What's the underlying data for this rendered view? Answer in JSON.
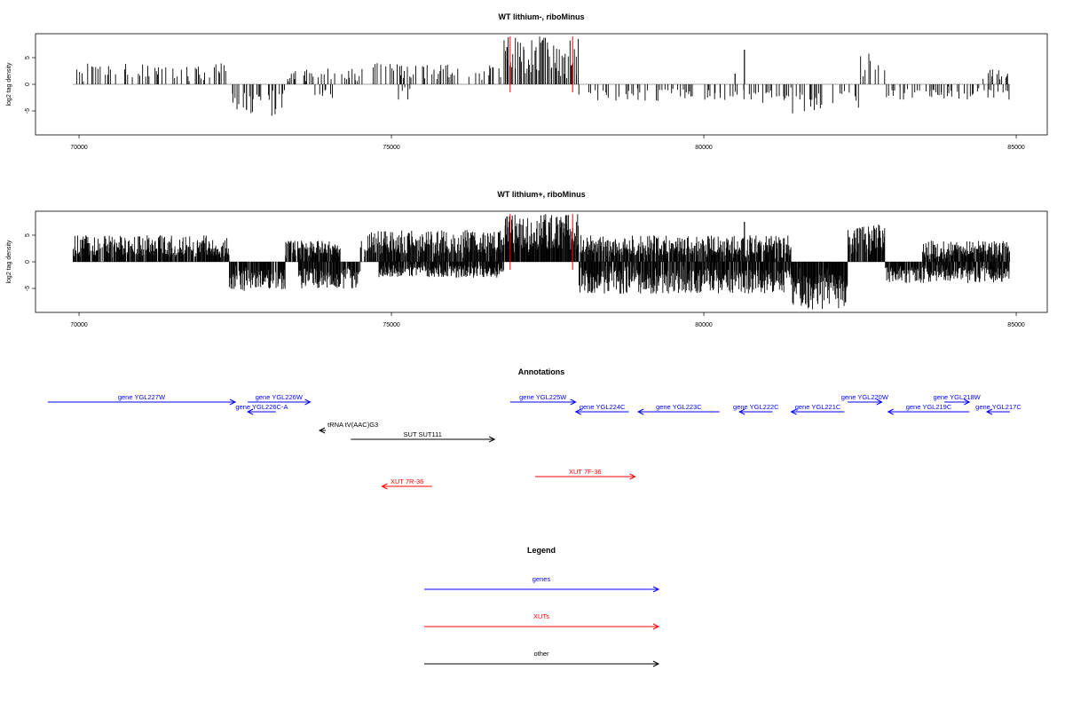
{
  "chart_data": [
    {
      "type": "bar",
      "title": "WT lithium-, riboMinus",
      "ylabel": "log2 tag density",
      "xlim": [
        69900,
        84900
      ],
      "ylim": [
        -9.5,
        9.5
      ],
      "x_ticks": [
        "70000",
        "75000",
        "80000",
        "85000"
      ],
      "y_ticks": [
        "-5",
        "0",
        "5"
      ],
      "marker_lines": [
        76900,
        77900
      ],
      "marker_color": "#ff0000",
      "density": "sparse",
      "segments": [
        {
          "from": 69900,
          "to": 72400,
          "sign": 1,
          "max": 4
        },
        {
          "from": 72400,
          "to": 73300,
          "sign": -1,
          "max": 6
        },
        {
          "from": 73300,
          "to": 74500,
          "sign": 1,
          "max": 3
        },
        {
          "from": 73700,
          "to": 74100,
          "sign": -1,
          "max": 3
        },
        {
          "from": 74500,
          "to": 76800,
          "sign": 1,
          "max": 4
        },
        {
          "from": 75100,
          "to": 75300,
          "sign": -1,
          "max": 3
        },
        {
          "from": 76800,
          "to": 78000,
          "sign": 1,
          "max": 9
        },
        {
          "from": 78000,
          "to": 81400,
          "sign": -1,
          "max": 3.5
        },
        {
          "from": 81400,
          "to": 82500,
          "sign": -1,
          "max": 6
        },
        {
          "from": 82500,
          "to": 82900,
          "sign": 1,
          "max": 6
        },
        {
          "from": 82900,
          "to": 84900,
          "sign": -1,
          "max": 3
        },
        {
          "from": 84400,
          "to": 84900,
          "sign": 1,
          "max": 3
        }
      ],
      "spikes": [
        {
          "x": 80650,
          "value": 6.5
        },
        {
          "x": 80500,
          "value": 2
        },
        {
          "x": 76850,
          "value": 7
        }
      ]
    },
    {
      "type": "bar",
      "title": "WT lithium+, riboMinus",
      "ylabel": "log2 tag density",
      "xlim": [
        69900,
        84900
      ],
      "ylim": [
        -9.5,
        9.5
      ],
      "x_ticks": [
        "70000",
        "75000",
        "80000",
        "85000"
      ],
      "y_ticks": [
        "-5",
        "0",
        "5"
      ],
      "marker_lines": [
        76900,
        77900
      ],
      "marker_color": "#ff0000",
      "density": "dense",
      "segments": [
        {
          "from": 69900,
          "to": 72400,
          "sign": 1,
          "max": 5
        },
        {
          "from": 72400,
          "to": 73300,
          "sign": -1,
          "max": 5.5
        },
        {
          "from": 73300,
          "to": 74200,
          "sign": 1,
          "max": 4
        },
        {
          "from": 73500,
          "to": 74500,
          "sign": -1,
          "max": 5
        },
        {
          "from": 74500,
          "to": 76800,
          "sign": 1,
          "max": 6
        },
        {
          "from": 74800,
          "to": 76800,
          "sign": -1,
          "max": 3
        },
        {
          "from": 76800,
          "to": 78000,
          "sign": 1,
          "max": 9
        },
        {
          "from": 78000,
          "to": 81400,
          "sign": 1,
          "max": 5
        },
        {
          "from": 78000,
          "to": 81400,
          "sign": -1,
          "max": 6
        },
        {
          "from": 81400,
          "to": 82300,
          "sign": -1,
          "max": 9
        },
        {
          "from": 82300,
          "to": 82900,
          "sign": 1,
          "max": 7
        },
        {
          "from": 82900,
          "to": 84900,
          "sign": -1,
          "max": 4
        },
        {
          "from": 83500,
          "to": 84900,
          "sign": 1,
          "max": 4
        }
      ],
      "spikes": [
        {
          "x": 80650,
          "value": 7.5
        },
        {
          "x": 76850,
          "value": 8.5
        }
      ]
    }
  ],
  "annotations": {
    "title": "Annotations",
    "xlim": [
      69900,
      84900
    ],
    "colors": {
      "genes": "#0000ff",
      "xuts": "#ff0000",
      "other": "#000000"
    },
    "features": [
      {
        "label": "gene YGL227W",
        "from": 69500,
        "to": 72500,
        "dir": "right",
        "kind": "genes",
        "row": 0
      },
      {
        "label": "gene YGL226W",
        "from": 72700,
        "to": 73700,
        "dir": "right",
        "kind": "genes",
        "row": 0
      },
      {
        "label": "gene YGL226C-A",
        "from": 72700,
        "to": 73150,
        "dir": "left",
        "kind": "genes",
        "row": 1
      },
      {
        "label": "gene YGL225W",
        "from": 76900,
        "to": 77950,
        "dir": "right",
        "kind": "genes",
        "row": 0
      },
      {
        "label": "gene YGL224C",
        "from": 77950,
        "to": 78800,
        "dir": "left",
        "kind": "genes",
        "row": 1
      },
      {
        "label": "gene YGL223C",
        "from": 78950,
        "to": 80250,
        "dir": "left",
        "kind": "genes",
        "row": 1
      },
      {
        "label": "gene YGL222C",
        "from": 80570,
        "to": 81100,
        "dir": "left",
        "kind": "genes",
        "row": 1
      },
      {
        "label": "gene YGL221C",
        "from": 81400,
        "to": 82250,
        "dir": "left",
        "kind": "genes",
        "row": 1
      },
      {
        "label": "gene YGL220W",
        "from": 82300,
        "to": 82850,
        "dir": "right",
        "kind": "genes",
        "row": 0
      },
      {
        "label": "gene YGL219C",
        "from": 82950,
        "to": 84250,
        "dir": "left",
        "kind": "genes",
        "row": 1
      },
      {
        "label": "gene YGL218W",
        "from": 83850,
        "to": 84250,
        "dir": "right",
        "kind": "genes",
        "row": 0
      },
      {
        "label": "gene YGL217C",
        "from": 84530,
        "to": 84900,
        "dir": "left",
        "kind": "genes",
        "row": 1
      },
      {
        "label": "tRNA tV(AAC)G3",
        "from": 73850,
        "to": 73950,
        "dir": "left",
        "kind": "other",
        "row": 2
      },
      {
        "label": "SUT SUT111",
        "from": 74350,
        "to": 76650,
        "dir": "right",
        "kind": "other",
        "row": 3
      },
      {
        "label": "XUT 7R-36",
        "from": 74850,
        "to": 75650,
        "dir": "left",
        "kind": "xuts",
        "row": 5
      },
      {
        "label": "XUT 7F-36",
        "from": 77300,
        "to": 78900,
        "dir": "right",
        "kind": "xuts",
        "row": 4
      }
    ]
  },
  "legend": {
    "title": "Legend",
    "items": [
      {
        "label": "genes",
        "color": "#0000ff"
      },
      {
        "label": "XUTs",
        "color": "#ff0000"
      },
      {
        "label": "other",
        "color": "#000000"
      }
    ]
  }
}
